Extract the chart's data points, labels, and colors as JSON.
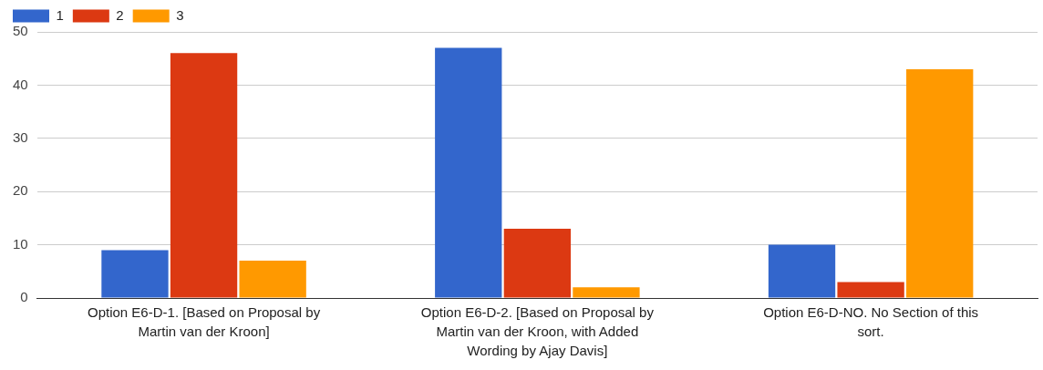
{
  "chart_data": {
    "type": "bar",
    "categories": [
      "Option E6-D-1. [Based on Proposal by Martin van der Kroon]",
      "Option E6-D-2. [Based on Proposal by Martin van der Kroon, with Added Wording by Ajay Davis]",
      "Option E6-D-NO. No Section of this sort."
    ],
    "series": [
      {
        "name": "1",
        "color": "#3366cc",
        "values": [
          9,
          47,
          10
        ]
      },
      {
        "name": "2",
        "color": "#dc3912",
        "values": [
          46,
          13,
          3
        ]
      },
      {
        "name": "3",
        "color": "#ff9900",
        "values": [
          7,
          2,
          43
        ]
      }
    ],
    "ylim": [
      0,
      50
    ],
    "yticks": [
      0,
      10,
      20,
      30,
      40,
      50
    ],
    "grid": "y",
    "legend": "top left"
  }
}
